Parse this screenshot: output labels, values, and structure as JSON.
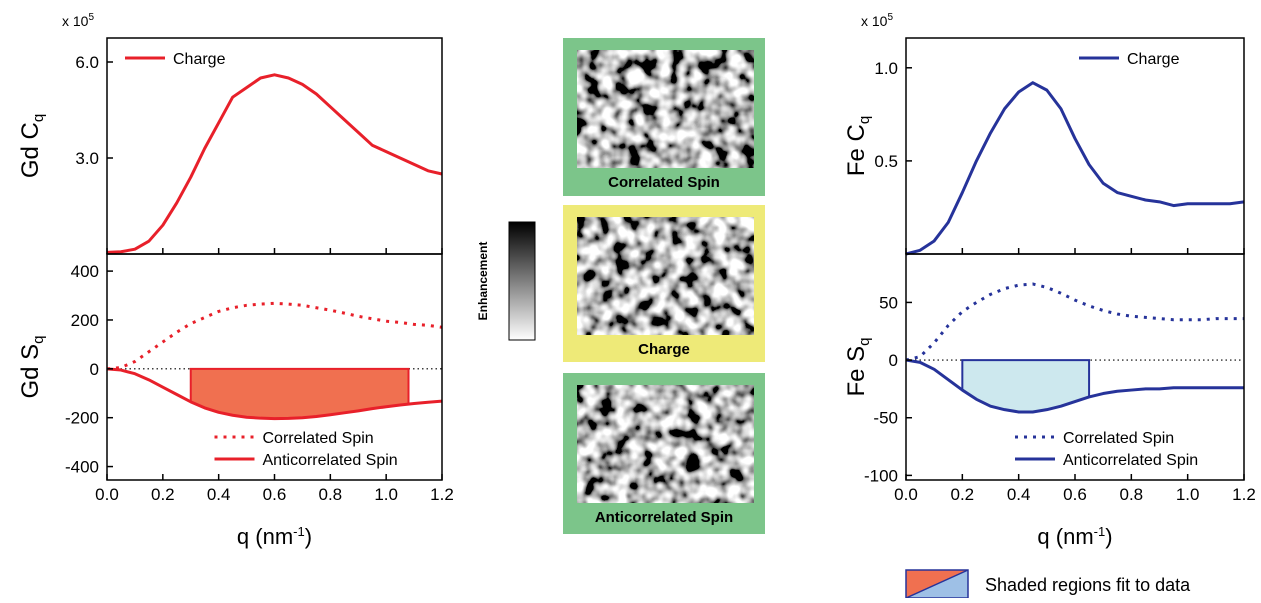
{
  "chart_data": [
    {
      "type": "line",
      "ylabel": {
        "text": "Gd  C",
        "subscript": "q"
      },
      "multiplier": {
        "text": "x 10",
        "superscript": "5"
      },
      "x": [
        0,
        0.05,
        0.1,
        0.15,
        0.2,
        0.25,
        0.3,
        0.35,
        0.4,
        0.45,
        0.5,
        0.55,
        0.6,
        0.65,
        0.7,
        0.75,
        0.8,
        0.85,
        0.9,
        0.95,
        1.0,
        1.05,
        1.1,
        1.15,
        1.2
      ],
      "series": [
        {
          "name": "Charge",
          "color": "#e8202a",
          "style": "solid",
          "values": [
            0.05,
            0.07,
            0.15,
            0.4,
            0.9,
            1.6,
            2.4,
            3.3,
            4.1,
            4.9,
            5.2,
            5.5,
            5.6,
            5.5,
            5.3,
            5.0,
            4.6,
            4.2,
            3.8,
            3.4,
            3.2,
            3.0,
            2.8,
            2.6,
            2.5
          ]
        }
      ],
      "xlim": [
        0,
        1.2
      ],
      "xticks": [
        0,
        0.2,
        0.4,
        0.6,
        0.8,
        1,
        1.2
      ],
      "xtick_labels": false,
      "ylim": [
        0,
        6.75
      ],
      "yticks": [
        {
          "value": 3,
          "label": "3.0"
        },
        {
          "value": 6,
          "label": "6.0"
        }
      ],
      "legend": "upper left"
    },
    {
      "type": "line",
      "ylabel": {
        "text": "Gd  S",
        "subscript": "q"
      },
      "xlabel": {
        "text": "q (nm",
        "superscript": "-1",
        "suffix": ")"
      },
      "x": [
        0,
        0.05,
        0.1,
        0.15,
        0.2,
        0.25,
        0.3,
        0.35,
        0.4,
        0.45,
        0.5,
        0.55,
        0.6,
        0.65,
        0.7,
        0.75,
        0.8,
        0.85,
        0.9,
        0.95,
        1.0,
        1.05,
        1.1,
        1.15,
        1.2
      ],
      "series": [
        {
          "name": "Correlated Spin",
          "color": "#e8202a",
          "style": "dotted",
          "values": [
            0,
            5,
            30,
            70,
            110,
            150,
            185,
            210,
            235,
            250,
            260,
            265,
            268,
            265,
            260,
            250,
            240,
            228,
            215,
            205,
            195,
            190,
            182,
            178,
            170
          ]
        },
        {
          "name": "Anticorrelated Spin",
          "color": "#e8202a",
          "style": "solid",
          "values": [
            0,
            -5,
            -20,
            -45,
            -75,
            -105,
            -135,
            -160,
            -178,
            -190,
            -198,
            -202,
            -204,
            -203,
            -200,
            -195,
            -188,
            -180,
            -172,
            -163,
            -155,
            -148,
            -142,
            -137,
            -132
          ]
        }
      ],
      "shaded_region": {
        "x": [
          0.3,
          1.08
        ],
        "color": "#f07050",
        "series": 1
      },
      "zero_line": true,
      "xlim": [
        0,
        1.2
      ],
      "xticks": [
        {
          "value": 0,
          "label": "0.0"
        },
        0.2,
        0.4,
        0.6,
        0.8,
        {
          "value": 1,
          "label": "1.0"
        },
        1.2
      ],
      "ylim": [
        -455,
        470
      ],
      "yticks": [
        -400,
        -200,
        0,
        200,
        400
      ],
      "legend": "lower center"
    },
    {
      "type": "line",
      "ylabel": {
        "text": "Fe  C",
        "subscript": "q"
      },
      "multiplier": {
        "text": "x 10",
        "superscript": "5"
      },
      "x": [
        0,
        0.05,
        0.1,
        0.15,
        0.2,
        0.25,
        0.3,
        0.35,
        0.4,
        0.45,
        0.5,
        0.55,
        0.6,
        0.65,
        0.7,
        0.75,
        0.8,
        0.85,
        0.9,
        0.95,
        1.0,
        1.05,
        1.1,
        1.15,
        1.2
      ],
      "series": [
        {
          "name": "Charge",
          "color": "#26339a",
          "style": "solid",
          "values": [
            0.0,
            0.02,
            0.07,
            0.17,
            0.33,
            0.5,
            0.65,
            0.78,
            0.87,
            0.92,
            0.88,
            0.78,
            0.62,
            0.48,
            0.38,
            0.33,
            0.31,
            0.29,
            0.28,
            0.26,
            0.27,
            0.27,
            0.27,
            0.27,
            0.28
          ]
        }
      ],
      "xlim": [
        0,
        1.2
      ],
      "xticks": [
        0,
        0.2,
        0.4,
        0.6,
        0.8,
        1,
        1.2
      ],
      "xtick_labels": false,
      "ylim": [
        0,
        1.16
      ],
      "yticks": [
        0.5,
        {
          "value": 1,
          "label": "1.0"
        }
      ],
      "legend": "upper right"
    },
    {
      "type": "line",
      "ylabel": {
        "text": "Fe  S",
        "subscript": "q"
      },
      "xlabel": {
        "text": "q (nm",
        "superscript": "-1",
        "suffix": ")"
      },
      "x": [
        0,
        0.05,
        0.1,
        0.15,
        0.2,
        0.25,
        0.3,
        0.35,
        0.4,
        0.45,
        0.5,
        0.55,
        0.6,
        0.65,
        0.7,
        0.75,
        0.8,
        0.85,
        0.9,
        0.95,
        1.0,
        1.05,
        1.1,
        1.15,
        1.2
      ],
      "series": [
        {
          "name": "Correlated Spin",
          "color": "#26339a",
          "style": "dotted",
          "values": [
            0,
            3,
            15,
            30,
            42,
            50,
            57,
            62,
            65,
            66,
            63,
            58,
            52,
            47,
            43,
            40,
            38,
            37,
            36,
            35,
            35,
            35,
            36,
            36,
            36
          ]
        },
        {
          "name": "Anticorrelated Spin",
          "color": "#26339a",
          "style": "solid",
          "values": [
            0,
            -2,
            -8,
            -17,
            -26,
            -34,
            -40,
            -43,
            -45,
            -45,
            -43,
            -40,
            -36,
            -32,
            -29,
            -27,
            -26,
            -25,
            -25,
            -24,
            -24,
            -24,
            -24,
            -24,
            -24
          ]
        }
      ],
      "shaded_region": {
        "x": [
          0.2,
          0.65
        ],
        "color": "#cde8ee",
        "series": 1
      },
      "zero_line": true,
      "xlim": [
        0,
        1.2
      ],
      "xticks": [
        {
          "value": 0,
          "label": "0.0"
        },
        0.2,
        0.4,
        0.6,
        0.8,
        {
          "value": 1,
          "label": "1.0"
        },
        1.2
      ],
      "ylim": [
        -104,
        92
      ],
      "yticks": [
        -100,
        -50,
        0,
        50
      ],
      "legend": "lower center"
    }
  ],
  "images": {
    "panels": [
      {
        "label": "Correlated Spin",
        "color": "#7cc58a"
      },
      {
        "label": "Charge",
        "color": "#eeea78"
      },
      {
        "label": "Anticorrelated Spin",
        "color": "#7cc58a"
      }
    ],
    "colorbar_label": "Enhancement"
  },
  "shading_legend": {
    "text": "Shaded regions fit to data",
    "colors": [
      "#f07050",
      "#9ec0e6"
    ]
  }
}
